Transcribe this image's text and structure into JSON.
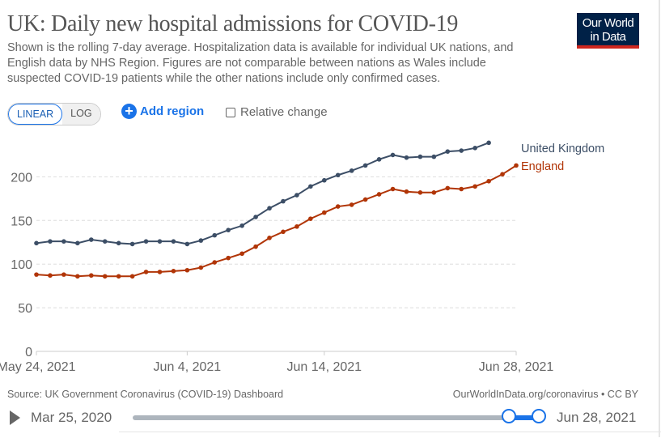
{
  "header": {
    "title": "UK: Daily new hospital admissions for COVID-19",
    "subtitle": "Shown is the rolling 7-day average. Hospitalization data is available for individual UK nations, and English data by NHS Region. Figures are not comparable between nations as Wales include suspected COVID-19 patients while the other nations include only confirmed cases.",
    "logo": "Our World in Data"
  },
  "controls": {
    "linear": "LINEAR",
    "log": "LOG",
    "add_region": "Add region",
    "relative_change": "Relative change",
    "active_scale": "linear"
  },
  "chart_data": {
    "type": "line",
    "x_start": "2021-05-24",
    "x_end": "2021-06-28",
    "x_ticks": [
      "May 24, 2021",
      "Jun 4, 2021",
      "Jun 14, 2021",
      "Jun 28, 2021"
    ],
    "y_ticks": [
      "0",
      "50",
      "100",
      "150",
      "200"
    ],
    "ylim": [
      0,
      240
    ],
    "grid": "horizontal dashed",
    "legend": "right (line-end labels)",
    "series": [
      {
        "name": "United Kingdom",
        "color": "#3c4e66",
        "start": "2021-05-24",
        "values": [
          124,
          126,
          126,
          124,
          128,
          126,
          124,
          123,
          126,
          126,
          126,
          123,
          127,
          133,
          139,
          144,
          154,
          164,
          172,
          179,
          189,
          196,
          202,
          207,
          213,
          220,
          225,
          222,
          223,
          223,
          229,
          230,
          233,
          239
        ]
      },
      {
        "name": "England",
        "color": "#b13507",
        "start": "2021-05-24",
        "values": [
          88,
          87,
          88,
          86,
          87,
          86,
          86,
          86,
          91,
          91,
          92,
          93,
          96,
          102,
          107,
          112,
          120,
          130,
          137,
          143,
          152,
          159,
          166,
          168,
          174,
          180,
          186,
          183,
          182,
          182,
          187,
          186,
          189,
          195,
          203,
          213
        ]
      }
    ]
  },
  "footer": {
    "source": "Source: UK Government Coronavirus (COVID-19) Dashboard",
    "license": "OurWorldInData.org/coronavirus • CC BY"
  },
  "timeline": {
    "start": "Mar 25, 2020",
    "end": "Jun 28, 2021"
  }
}
